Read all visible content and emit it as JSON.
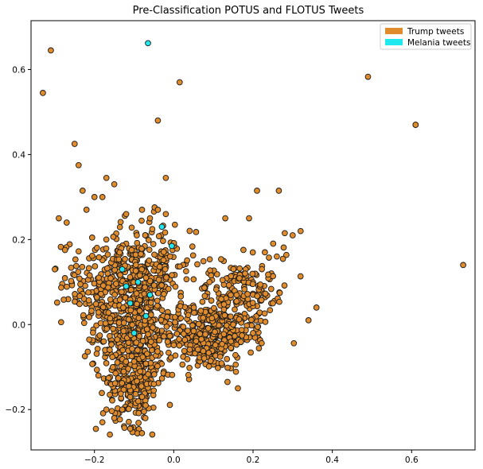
{
  "chart_data": {
    "type": "scatter",
    "title": "Pre-Classification POTUS and FLOTUS Tweets",
    "xlabel": "",
    "ylabel": "",
    "xlim": [
      -0.36,
      0.76
    ],
    "ylim": [
      -0.295,
      0.715
    ],
    "xticks": [
      -0.2,
      0.0,
      0.2,
      0.4,
      0.6
    ],
    "xtick_labels": [
      "−0.2",
      "0.0",
      "0.2",
      "0.4",
      "0.6"
    ],
    "yticks": [
      -0.2,
      0.0,
      0.2,
      0.4,
      0.6
    ],
    "ytick_labels": [
      "−0.2",
      "0.0",
      "0.2",
      "0.4",
      "0.6"
    ],
    "grid": false,
    "legend_position": "top-right",
    "series": [
      {
        "name": "Trump tweets",
        "color": "#e08c2c",
        "edge_color": "#1a1a1a",
        "points": [
          [
            -0.33,
            0.545
          ],
          [
            -0.31,
            0.645
          ],
          [
            0.015,
            0.57
          ],
          [
            0.49,
            0.583
          ],
          [
            0.61,
            0.47
          ],
          [
            0.61,
            0.47
          ],
          [
            -0.04,
            0.48
          ],
          [
            0.73,
            0.14
          ],
          [
            -0.25,
            0.425
          ],
          [
            -0.24,
            0.375
          ],
          [
            -0.02,
            0.345
          ],
          [
            -0.17,
            0.345
          ],
          [
            -0.3,
            0.13
          ],
          [
            -0.29,
            0.25
          ],
          [
            -0.27,
            0.24
          ],
          [
            -0.23,
            0.315
          ],
          [
            0.21,
            0.315
          ],
          [
            0.265,
            0.315
          ],
          [
            0.3,
            0.21
          ],
          [
            0.32,
            0.22
          ],
          [
            0.36,
            0.04
          ],
          [
            0.34,
            0.01
          ],
          [
            0.28,
            0.215
          ],
          [
            -0.22,
            0.27
          ],
          [
            -0.2,
            0.3
          ],
          [
            -0.18,
            0.3
          ],
          [
            -0.15,
            0.33
          ],
          [
            -0.12,
            0.26
          ],
          [
            -0.08,
            0.27
          ],
          [
            -0.06,
            0.25
          ],
          [
            -0.04,
            0.27
          ],
          [
            -0.02,
            0.26
          ],
          [
            0.13,
            0.25
          ],
          [
            0.19,
            0.25
          ],
          [
            -0.18,
            -0.23
          ],
          [
            -0.17,
            -0.2
          ],
          [
            -0.11,
            -0.245
          ],
          [
            -0.13,
            -0.2
          ],
          [
            -0.15,
            -0.22
          ],
          [
            -0.19,
            -0.12
          ],
          [
            -0.08,
            -0.17
          ],
          [
            -0.05,
            -0.14
          ],
          [
            0.09,
            0.1
          ],
          [
            0.12,
            0.06
          ],
          [
            0.15,
            0.0
          ],
          [
            0.2,
            -0.02
          ],
          [
            0.25,
            0.05
          ],
          [
            0.18,
            0.12
          ],
          [
            0.23,
            0.17
          ],
          [
            0.26,
            0.16
          ]
        ]
      },
      {
        "name": "Melania tweets",
        "color": "#1fe8ef",
        "edge_color": "#1a1a1a",
        "points": [
          [
            -0.065,
            0.662
          ],
          [
            -0.005,
            0.185
          ],
          [
            -0.13,
            0.13
          ],
          [
            -0.09,
            0.1
          ],
          [
            -0.06,
            0.07
          ],
          [
            -0.11,
            0.05
          ],
          [
            -0.03,
            0.23
          ],
          [
            -0.12,
            0.09
          ],
          [
            -0.07,
            0.02
          ],
          [
            -0.1,
            -0.02
          ]
        ]
      }
    ]
  }
}
